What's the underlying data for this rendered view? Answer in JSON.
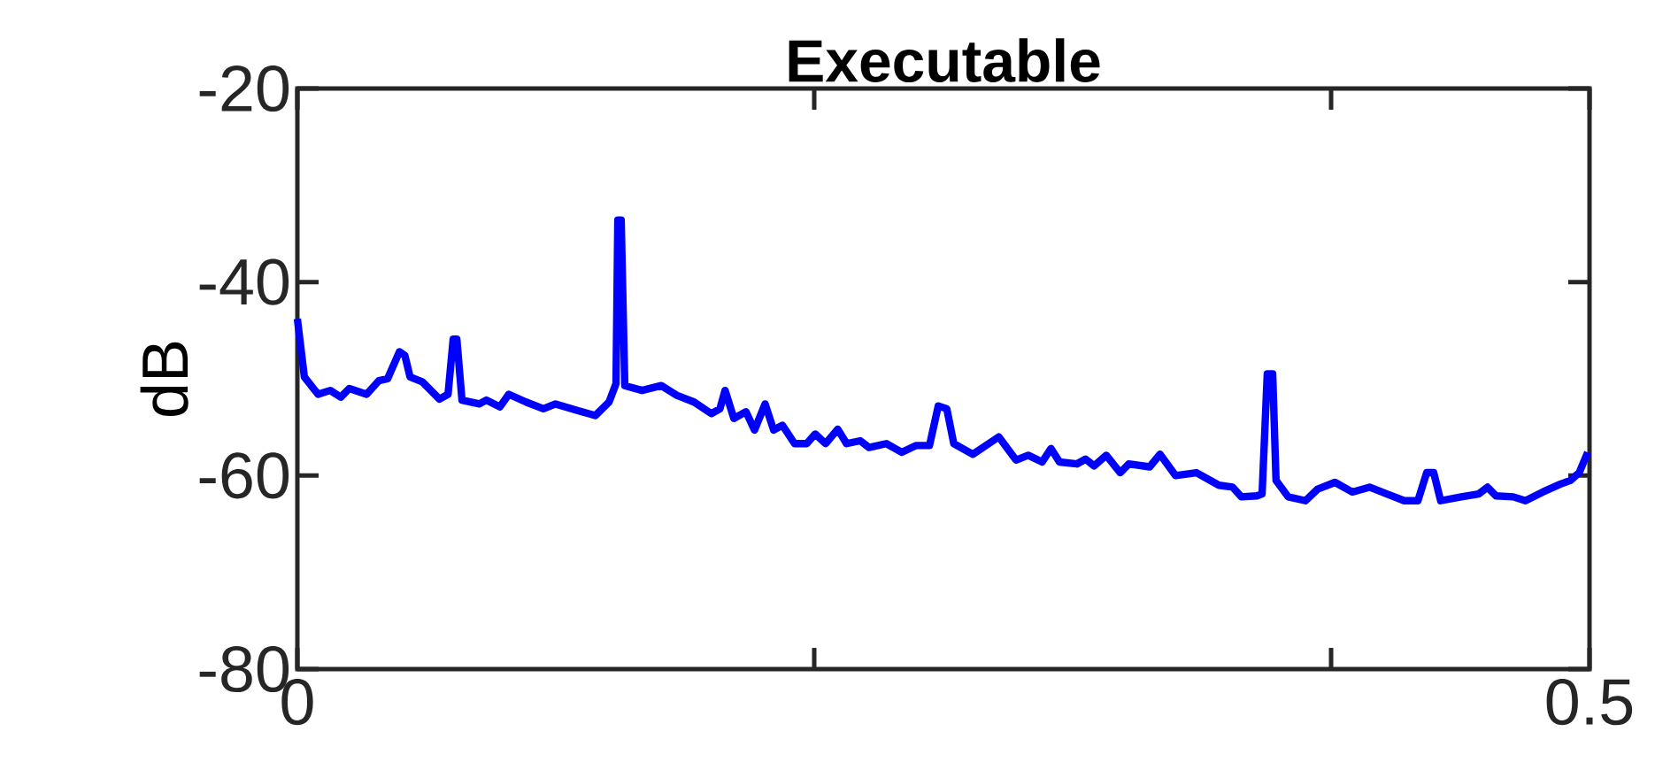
{
  "chart_data": {
    "type": "line",
    "title": "Executable",
    "ylabel": "dB",
    "xlim": [
      0,
      0.5
    ],
    "ylim": [
      -80,
      -20
    ],
    "xticks": [
      0,
      {
        "value": 0.2,
        "label": null
      },
      {
        "value": 0.4,
        "label": null
      },
      0.5
    ],
    "yticks": [
      -80,
      -60,
      -40,
      -20
    ],
    "grid": false,
    "series": [
      {
        "color": "#0000ff",
        "x": [
          0,
          0.0027,
          0.008,
          0.0127,
          0.0168,
          0.0201,
          0.0268,
          0.0315,
          0.0349,
          0.0395,
          0.0416,
          0.0436,
          0.0483,
          0.055,
          0.0583,
          0.0603,
          0.0617,
          0.0637,
          0.0704,
          0.0731,
          0.0784,
          0.0818,
          0.0885,
          0.0952,
          0.0999,
          0.1086,
          0.1153,
          0.1206,
          0.1233,
          0.124,
          0.1253,
          0.1267,
          0.1334,
          0.1408,
          0.1468,
          0.1535,
          0.1602,
          0.1635,
          0.1655,
          0.1689,
          0.1736,
          0.1769,
          0.181,
          0.1843,
          0.1877,
          0.1924,
          0.1971,
          0.2004,
          0.2044,
          0.2091,
          0.2125,
          0.2178,
          0.2212,
          0.2279,
          0.2339,
          0.2393,
          0.2446,
          0.248,
          0.2513,
          0.254,
          0.2614,
          0.2714,
          0.2781,
          0.2828,
          0.2882,
          0.2916,
          0.2949,
          0.3016,
          0.305,
          0.3083,
          0.313,
          0.3184,
          0.3217,
          0.3298,
          0.3338,
          0.3398,
          0.3479,
          0.3566,
          0.3619,
          0.3653,
          0.3713,
          0.3733,
          0.3753,
          0.3774,
          0.3787,
          0.3834,
          0.3901,
          0.3948,
          0.4015,
          0.4082,
          0.4149,
          0.4216,
          0.4283,
          0.4336,
          0.437,
          0.4397,
          0.4424,
          0.4504,
          0.4571,
          0.4605,
          0.4638,
          0.4705,
          0.4752,
          0.4819,
          0.4886,
          0.4926,
          0.496,
          0.4993
        ],
        "values": [
          -43.8,
          -49.8,
          -51.6,
          -51.2,
          -51.9,
          -51.0,
          -51.6,
          -50.2,
          -50.0,
          -47.2,
          -47.6,
          -49.8,
          -50.3,
          -52.1,
          -51.6,
          -45.9,
          -45.9,
          -52.2,
          -52.6,
          -52.2,
          -52.9,
          -51.6,
          -52.4,
          -53.1,
          -52.6,
          -53.3,
          -53.8,
          -52.4,
          -50.5,
          -33.6,
          -33.6,
          -50.7,
          -51.2,
          -50.7,
          -51.7,
          -52.4,
          -53.6,
          -53.1,
          -51.2,
          -54.1,
          -53.4,
          -55.3,
          -52.6,
          -55.3,
          -54.8,
          -56.7,
          -56.7,
          -55.7,
          -56.7,
          -55.2,
          -56.7,
          -56.4,
          -57.1,
          -56.7,
          -57.6,
          -56.9,
          -56.9,
          -52.8,
          -53.1,
          -56.7,
          -57.8,
          -56.0,
          -58.4,
          -57.9,
          -58.6,
          -57.2,
          -58.6,
          -58.8,
          -58.3,
          -59.0,
          -57.9,
          -59.7,
          -58.8,
          -59.1,
          -57.8,
          -60.0,
          -59.7,
          -61.0,
          -61.2,
          -62.2,
          -62.1,
          -61.9,
          -49.5,
          -49.5,
          -60.5,
          -62.2,
          -62.6,
          -61.4,
          -60.7,
          -61.7,
          -61.2,
          -61.9,
          -62.6,
          -62.6,
          -59.7,
          -59.7,
          -62.6,
          -62.2,
          -61.9,
          -61.2,
          -62.1,
          -62.2,
          -62.6,
          -61.7,
          -60.9,
          -60.5,
          -59.7,
          -57.6
        ]
      }
    ]
  }
}
